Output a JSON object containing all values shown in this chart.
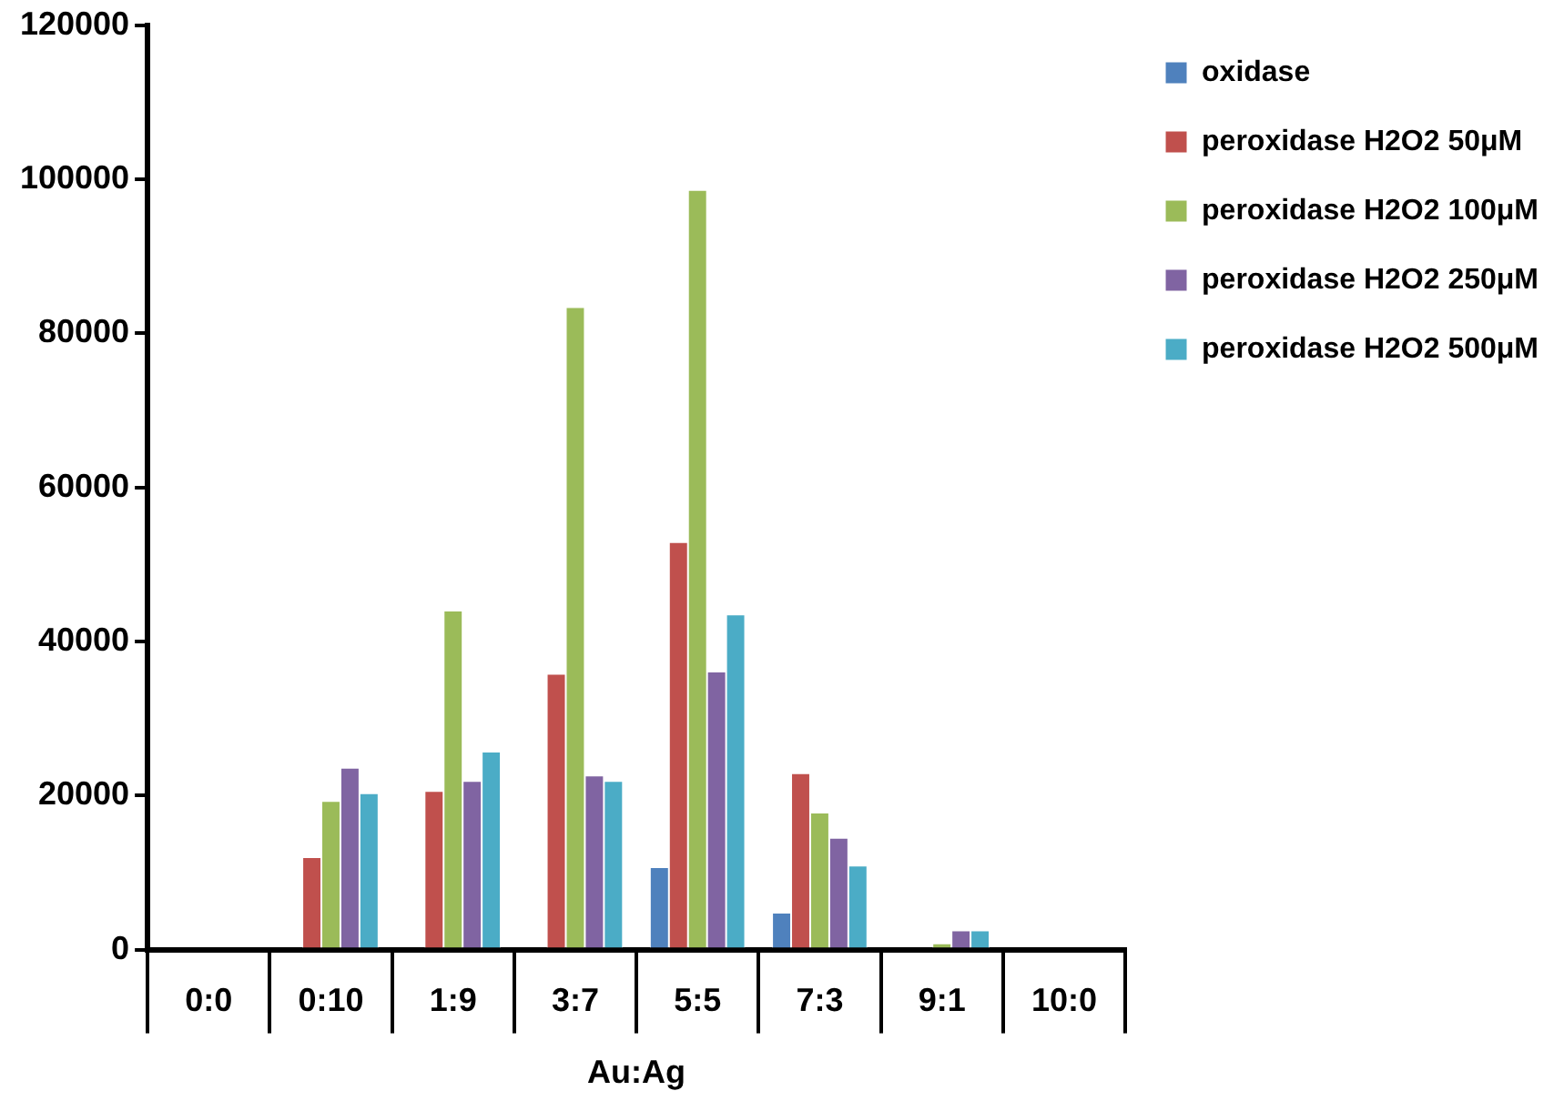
{
  "chart_data": {
    "type": "bar",
    "xlabel": "Au:Ag",
    "categories": [
      "0:0",
      "0:10",
      "1:9",
      "3:7",
      "5:5",
      "7:3",
      "9:1",
      "10:0"
    ],
    "series": [
      {
        "name": "oxidase",
        "color": "#4f81bd",
        "values": [
          0,
          0,
          0,
          0,
          10700,
          4800,
          0,
          0
        ]
      },
      {
        "name": "peroxidase H2O2 50μM",
        "color": "#c0504d",
        "values": [
          0,
          12000,
          20600,
          35800,
          52900,
          22900,
          0,
          0
        ]
      },
      {
        "name": "peroxidase H2O2 100μM",
        "color": "#9bbb59",
        "values": [
          0,
          19300,
          44000,
          83400,
          98600,
          17800,
          800,
          0
        ]
      },
      {
        "name": "peroxidase H2O2 250μM",
        "color": "#8064a2",
        "values": [
          0,
          23600,
          21900,
          22600,
          36100,
          14500,
          2500,
          0
        ]
      },
      {
        "name": "peroxidase H2O2 500μM",
        "color": "#4bacc6",
        "values": [
          0,
          20300,
          25700,
          21900,
          43500,
          10900,
          2500,
          0
        ]
      }
    ],
    "ylim": [
      0,
      120000
    ],
    "yticks": [
      0,
      20000,
      40000,
      60000,
      80000,
      100000,
      120000
    ],
    "grid": false,
    "legend": "top right"
  }
}
